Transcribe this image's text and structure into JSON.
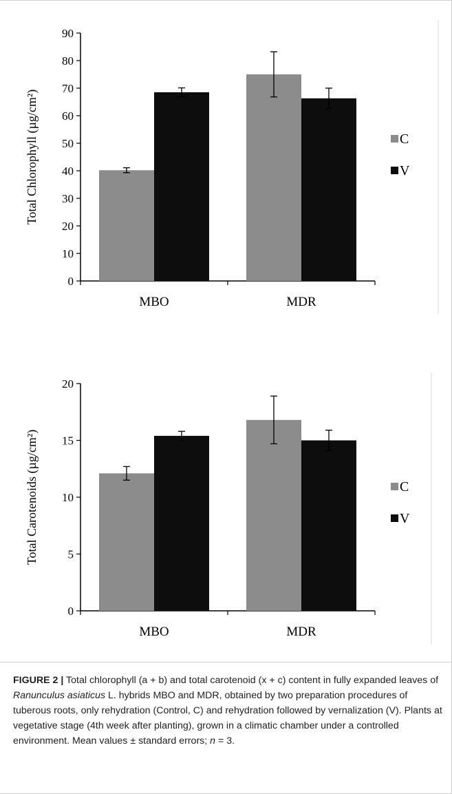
{
  "chart_data": [
    {
      "type": "bar",
      "ylabel": "Total Chlorophyll (µg/cm²)",
      "categories": [
        "MBO",
        "MDR"
      ],
      "series": [
        {
          "name": "C",
          "values": [
            40.2,
            75.0
          ],
          "errors": [
            0.9,
            8.2
          ],
          "color": "#8c8c8c"
        },
        {
          "name": "V",
          "values": [
            68.5,
            66.3
          ],
          "errors": [
            1.6,
            3.7
          ],
          "color": "#0d0d0d"
        }
      ],
      "ylim": [
        0,
        90
      ],
      "yticks": [
        "0",
        "10",
        "20",
        "30",
        "40",
        "50",
        "60",
        "70",
        "80",
        "90"
      ],
      "grid": false,
      "legend": "right"
    },
    {
      "type": "bar",
      "ylabel": "Total  Carotenoids (µg/cm²)",
      "categories": [
        "MBO",
        "MDR"
      ],
      "series": [
        {
          "name": "C",
          "values": [
            12.1,
            16.8
          ],
          "errors": [
            0.6,
            2.1
          ],
          "color": "#8c8c8c"
        },
        {
          "name": "V",
          "values": [
            15.4,
            15.0
          ],
          "errors": [
            0.4,
            0.9
          ],
          "color": "#0d0d0d"
        }
      ],
      "ylim": [
        0,
        20
      ],
      "yticks": [
        "0",
        "5",
        "10",
        "15",
        "20"
      ],
      "grid": false,
      "legend": "right"
    }
  ],
  "caption": {
    "label": "FIGURE 2 |",
    "part1": " Total chlorophyll (a + b) and total carotenoid (x + c) content in fully expanded leaves of ",
    "species": "Ranunculus asiaticus",
    "part2": " L. hybrids MBO and MDR, obtained by two preparation procedures of tuberous roots, only rehydration (Control, C) and rehydration followed by vernalization (V). Plants at vegetative stage (4th week after planting), grown in a climatic chamber under a controlled environment. Mean values ± standard errors; ",
    "n_var": "n",
    "part3": " = 3."
  }
}
